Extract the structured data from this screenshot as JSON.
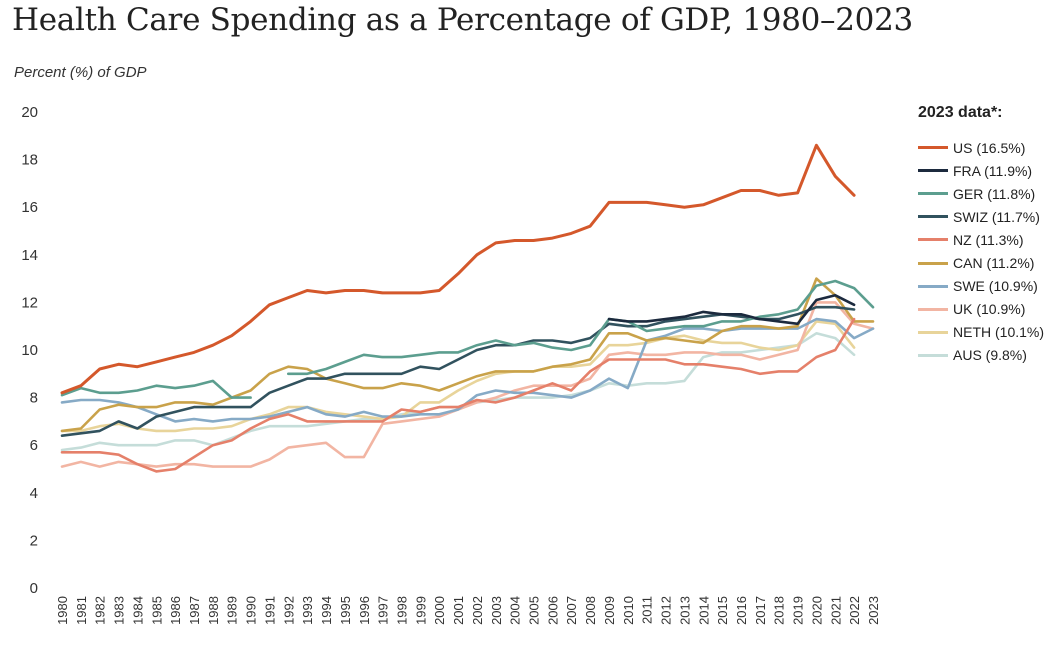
{
  "chart_data": {
    "type": "line",
    "title": "Health Care Spending as a Percentage of GDP, 1980–2023",
    "ylabel": "Percent (%) of GDP",
    "xlabel": "",
    "ylim": [
      0,
      20
    ],
    "yticks": [
      "0",
      "2",
      "4",
      "6",
      "8",
      "10",
      "12",
      "14",
      "16",
      "18",
      "20"
    ],
    "x": [
      "1980",
      "1981",
      "1982",
      "1983",
      "1984",
      "1985",
      "1986",
      "1987",
      "1988",
      "1989",
      "1990",
      "1991",
      "1992",
      "1993",
      "1994",
      "1995",
      "1996",
      "1997",
      "1998",
      "1999",
      "2000",
      "2001",
      "2002",
      "2003",
      "2004",
      "2005",
      "2006",
      "2007",
      "2008",
      "2009",
      "2010",
      "2011",
      "2012",
      "2013",
      "2014",
      "2015",
      "2016",
      "2017",
      "2018",
      "2019",
      "2020",
      "2021",
      "2022",
      "2023"
    ],
    "legend_title": "2023 data*:",
    "legend_position": "right",
    "grid": false,
    "series": [
      {
        "name": "US (16.5%)",
        "color": "#d4582b",
        "values": [
          8.2,
          8.5,
          9.2,
          9.4,
          9.3,
          9.5,
          9.7,
          9.9,
          10.2,
          10.6,
          11.2,
          11.9,
          12.2,
          12.5,
          12.4,
          12.5,
          12.5,
          12.4,
          12.4,
          12.4,
          12.5,
          13.2,
          14.0,
          14.5,
          14.6,
          14.6,
          14.7,
          14.9,
          15.2,
          16.2,
          16.2,
          16.2,
          16.1,
          16.0,
          16.1,
          16.4,
          16.7,
          16.7,
          16.5,
          16.6,
          18.6,
          17.3,
          16.5,
          null
        ]
      },
      {
        "name": "FRA (11.9%)",
        "color": "#1c2a3e",
        "values": [
          null,
          null,
          null,
          null,
          null,
          null,
          null,
          null,
          null,
          null,
          null,
          null,
          null,
          null,
          null,
          null,
          null,
          null,
          null,
          null,
          null,
          null,
          null,
          null,
          null,
          null,
          null,
          null,
          null,
          11.3,
          11.2,
          11.2,
          11.3,
          11.4,
          11.6,
          11.5,
          11.5,
          11.3,
          11.2,
          11.1,
          12.1,
          12.3,
          11.9,
          null
        ]
      },
      {
        "name": "GER (11.8%)",
        "color": "#5c9e8f",
        "values": [
          8.1,
          8.4,
          8.2,
          8.2,
          8.3,
          8.5,
          8.4,
          8.5,
          8.7,
          8.0,
          8.0,
          null,
          9.0,
          9.0,
          9.2,
          9.5,
          9.8,
          9.7,
          9.7,
          9.8,
          9.9,
          9.9,
          10.2,
          10.4,
          10.2,
          10.3,
          10.1,
          10.0,
          10.2,
          11.3,
          11.2,
          10.8,
          10.9,
          11.0,
          11.0,
          11.2,
          11.2,
          11.4,
          11.5,
          11.7,
          12.7,
          12.9,
          12.6,
          11.8
        ]
      },
      {
        "name": "SWIZ (11.7%)",
        "color": "#31525e",
        "values": [
          6.4,
          6.5,
          6.6,
          7.0,
          6.7,
          7.2,
          7.4,
          7.6,
          7.6,
          7.6,
          7.6,
          8.2,
          8.5,
          8.8,
          8.8,
          9.0,
          9.0,
          9.0,
          9.0,
          9.3,
          9.2,
          9.6,
          10.0,
          10.2,
          10.2,
          10.4,
          10.4,
          10.3,
          10.5,
          11.1,
          11.0,
          11.0,
          11.2,
          11.3,
          11.4,
          11.5,
          11.4,
          11.3,
          11.3,
          11.5,
          11.8,
          11.8,
          11.7,
          null
        ]
      },
      {
        "name": "NZ (11.3%)",
        "color": "#e5806a",
        "values": [
          5.7,
          5.7,
          5.7,
          5.6,
          5.2,
          4.9,
          5.0,
          5.5,
          6.0,
          6.2,
          6.7,
          7.1,
          7.3,
          7.0,
          7.0,
          7.0,
          7.0,
          7.0,
          7.5,
          7.4,
          7.6,
          7.6,
          7.9,
          7.8,
          8.0,
          8.3,
          8.6,
          8.3,
          9.1,
          9.6,
          9.6,
          9.6,
          9.6,
          9.4,
          9.4,
          9.3,
          9.2,
          9.0,
          9.1,
          9.1,
          9.7,
          10.0,
          11.3,
          null
        ]
      },
      {
        "name": "CAN (11.2%)",
        "color": "#c9a24a",
        "values": [
          6.6,
          6.7,
          7.5,
          7.7,
          7.6,
          7.6,
          7.8,
          7.8,
          7.7,
          8.0,
          8.3,
          9.0,
          9.3,
          9.2,
          8.8,
          8.6,
          8.4,
          8.4,
          8.6,
          8.5,
          8.3,
          8.6,
          8.9,
          9.1,
          9.1,
          9.1,
          9.3,
          9.4,
          9.6,
          10.7,
          10.7,
          10.4,
          10.5,
          10.4,
          10.3,
          10.8,
          11.0,
          11.0,
          10.9,
          11.0,
          13.0,
          12.3,
          11.2,
          11.2
        ]
      },
      {
        "name": "SWE (10.9%)",
        "color": "#86aac6",
        "values": [
          7.8,
          7.9,
          7.9,
          7.8,
          7.6,
          7.3,
          7.0,
          7.1,
          7.0,
          7.1,
          7.1,
          7.2,
          7.4,
          7.6,
          7.3,
          7.2,
          7.4,
          7.2,
          7.2,
          7.3,
          7.3,
          7.5,
          8.1,
          8.3,
          8.2,
          8.2,
          8.1,
          8.0,
          8.3,
          8.8,
          8.4,
          10.4,
          10.6,
          10.9,
          10.9,
          10.8,
          10.9,
          10.9,
          10.9,
          10.9,
          11.3,
          11.2,
          10.5,
          10.9
        ]
      },
      {
        "name": "UK (10.9%)",
        "color": "#f2b5a3",
        "values": [
          5.1,
          5.3,
          5.1,
          5.3,
          5.2,
          5.1,
          5.2,
          5.2,
          5.1,
          5.1,
          5.1,
          5.4,
          5.9,
          6.0,
          6.1,
          5.5,
          5.5,
          6.9,
          7.0,
          7.1,
          7.2,
          7.5,
          7.8,
          8.0,
          8.3,
          8.5,
          8.5,
          8.5,
          8.8,
          9.8,
          9.9,
          9.8,
          9.8,
          9.9,
          9.9,
          9.8,
          9.8,
          9.6,
          9.8,
          10.0,
          12.0,
          12.0,
          11.1,
          10.9
        ]
      },
      {
        "name": "NETH (10.1%)",
        "color": "#e8d49a",
        "values": [
          6.6,
          6.6,
          6.8,
          6.9,
          6.7,
          6.6,
          6.6,
          6.7,
          6.7,
          6.8,
          7.1,
          7.3,
          7.6,
          7.6,
          7.4,
          7.3,
          7.2,
          7.1,
          7.2,
          7.8,
          7.8,
          8.3,
          8.7,
          9.0,
          9.1,
          9.1,
          9.3,
          9.3,
          9.4,
          10.2,
          10.2,
          10.3,
          10.5,
          10.6,
          10.4,
          10.3,
          10.3,
          10.1,
          10.0,
          10.2,
          11.2,
          11.1,
          10.1,
          null
        ]
      },
      {
        "name": "AUS (9.8%)",
        "color": "#c5ddd9",
        "values": [
          5.8,
          5.9,
          6.1,
          6.0,
          6.0,
          6.0,
          6.2,
          6.2,
          6.0,
          6.3,
          6.6,
          6.8,
          6.8,
          6.8,
          6.9,
          7.0,
          7.1,
          7.1,
          7.3,
          7.4,
          7.6,
          7.6,
          7.8,
          7.9,
          8.0,
          8.0,
          8.0,
          8.1,
          8.3,
          8.6,
          8.5,
          8.6,
          8.6,
          8.7,
          9.7,
          9.9,
          9.9,
          10.0,
          10.1,
          10.2,
          10.7,
          10.5,
          9.8,
          null
        ]
      }
    ]
  }
}
